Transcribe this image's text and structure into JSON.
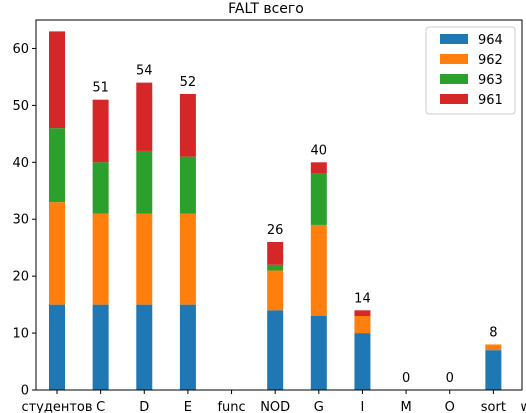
{
  "chart_data": {
    "type": "bar",
    "stacked": true,
    "title": "FALT всего",
    "xlabel": "",
    "ylabel": "",
    "categories": [
      "студентов",
      "C",
      "D",
      "E",
      "func",
      "NOD",
      "G",
      "I",
      "M",
      "O",
      "sort",
      "ways"
    ],
    "series": [
      {
        "name": "964",
        "color": "#1f77b4",
        "values": [
          15,
          15,
          15,
          15,
          0,
          14,
          13,
          10,
          0,
          0,
          7,
          0
        ]
      },
      {
        "name": "962",
        "color": "#ff7f0e",
        "values": [
          18,
          16,
          16,
          16,
          0,
          7,
          16,
          3,
          0,
          0,
          1,
          0
        ]
      },
      {
        "name": "963",
        "color": "#2ca02c",
        "values": [
          13,
          9,
          11,
          10,
          0,
          1,
          9,
          0,
          0,
          0,
          0,
          0
        ]
      },
      {
        "name": "961",
        "color": "#d62728",
        "values": [
          17,
          11,
          12,
          11,
          0,
          4,
          2,
          1,
          0,
          0,
          0,
          0
        ]
      }
    ],
    "data_labels": [
      "",
      "51",
      "54",
      "52",
      "",
      "26",
      "40",
      "14",
      "0",
      "0",
      "8",
      "0"
    ],
    "ylim": [
      0,
      65
    ],
    "yticks": [
      0,
      10,
      20,
      30,
      40,
      50,
      60
    ],
    "grid": false,
    "legend_position": "top-right"
  }
}
